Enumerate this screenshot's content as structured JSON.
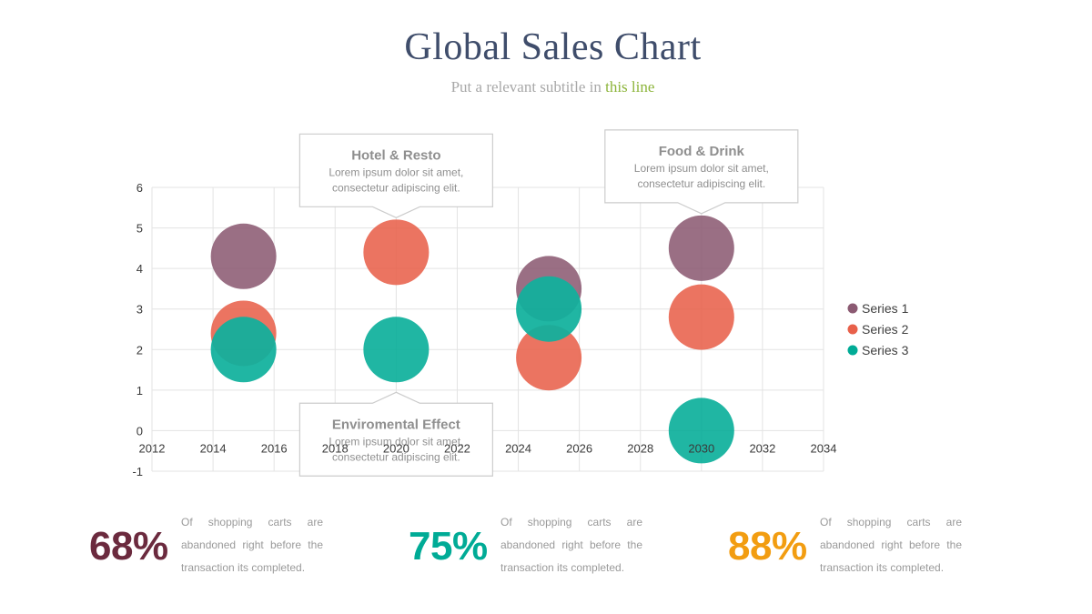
{
  "header": {
    "title": "Global Sales Chart",
    "subtitle_main": "Put a relevant subtitle in ",
    "subtitle_highlight": "this line"
  },
  "colors": {
    "series1": "#8b5a72",
    "series2": "#e8604a",
    "series3": "#00ab96",
    "grid": "#e3e3e3",
    "axis_text": "#3a3a3a",
    "callout_border": "#cccccc"
  },
  "chart_data": {
    "type": "scatter",
    "xlim": [
      2012,
      2034
    ],
    "ylim": [
      -1,
      6
    ],
    "x_ticks": [
      2012,
      2014,
      2016,
      2018,
      2020,
      2022,
      2024,
      2026,
      2028,
      2030,
      2032,
      2034
    ],
    "y_ticks": [
      -1,
      0,
      1,
      2,
      3,
      4,
      5,
      6
    ],
    "grid": true,
    "legend_position": "right",
    "series": [
      {
        "name": "Series 1",
        "color": "#8b5a72",
        "points": [
          [
            2015,
            4.3
          ],
          [
            2025,
            3.5
          ],
          [
            2030,
            4.5
          ]
        ]
      },
      {
        "name": "Series 2",
        "color": "#e8604a",
        "points": [
          [
            2015,
            2.4
          ],
          [
            2020,
            4.4
          ],
          [
            2025,
            1.8
          ],
          [
            2030,
            2.8
          ]
        ]
      },
      {
        "name": "Series 3",
        "color": "#00ab96",
        "points": [
          [
            2015,
            2.0
          ],
          [
            2020,
            2.0
          ],
          [
            2025,
            3.0
          ],
          [
            2030,
            0.0
          ]
        ]
      }
    ],
    "annotations": [
      {
        "title": "Hotel & Resto",
        "text1": "Lorem ipsum dolor sit amet,",
        "text2": "consectetur adipiscing elit.",
        "x": 2020,
        "y": 4.4,
        "placement": "above"
      },
      {
        "title": "Food & Drink",
        "text1": "Lorem ipsum dolor sit amet,",
        "text2": "consectetur adipiscing elit.",
        "x": 2030,
        "y": 4.5,
        "placement": "above"
      },
      {
        "title": "Enviromental Effect",
        "text1": "Lorem ipsum dolor sit amet,",
        "text2": "consectetur adipiscing elit.",
        "x": 2020,
        "y": 2.0,
        "placement": "below"
      }
    ]
  },
  "stats": [
    {
      "value": "68%",
      "color": "#6b2a3e",
      "description": "Of shopping carts are abandoned right before the transaction its completed."
    },
    {
      "value": "75%",
      "color": "#00ab96",
      "description": "Of shopping carts are abandoned right before the transaction its completed."
    },
    {
      "value": "88%",
      "color": "#f29d11",
      "description": "Of shopping carts are abandoned right before the transaction its completed."
    }
  ]
}
